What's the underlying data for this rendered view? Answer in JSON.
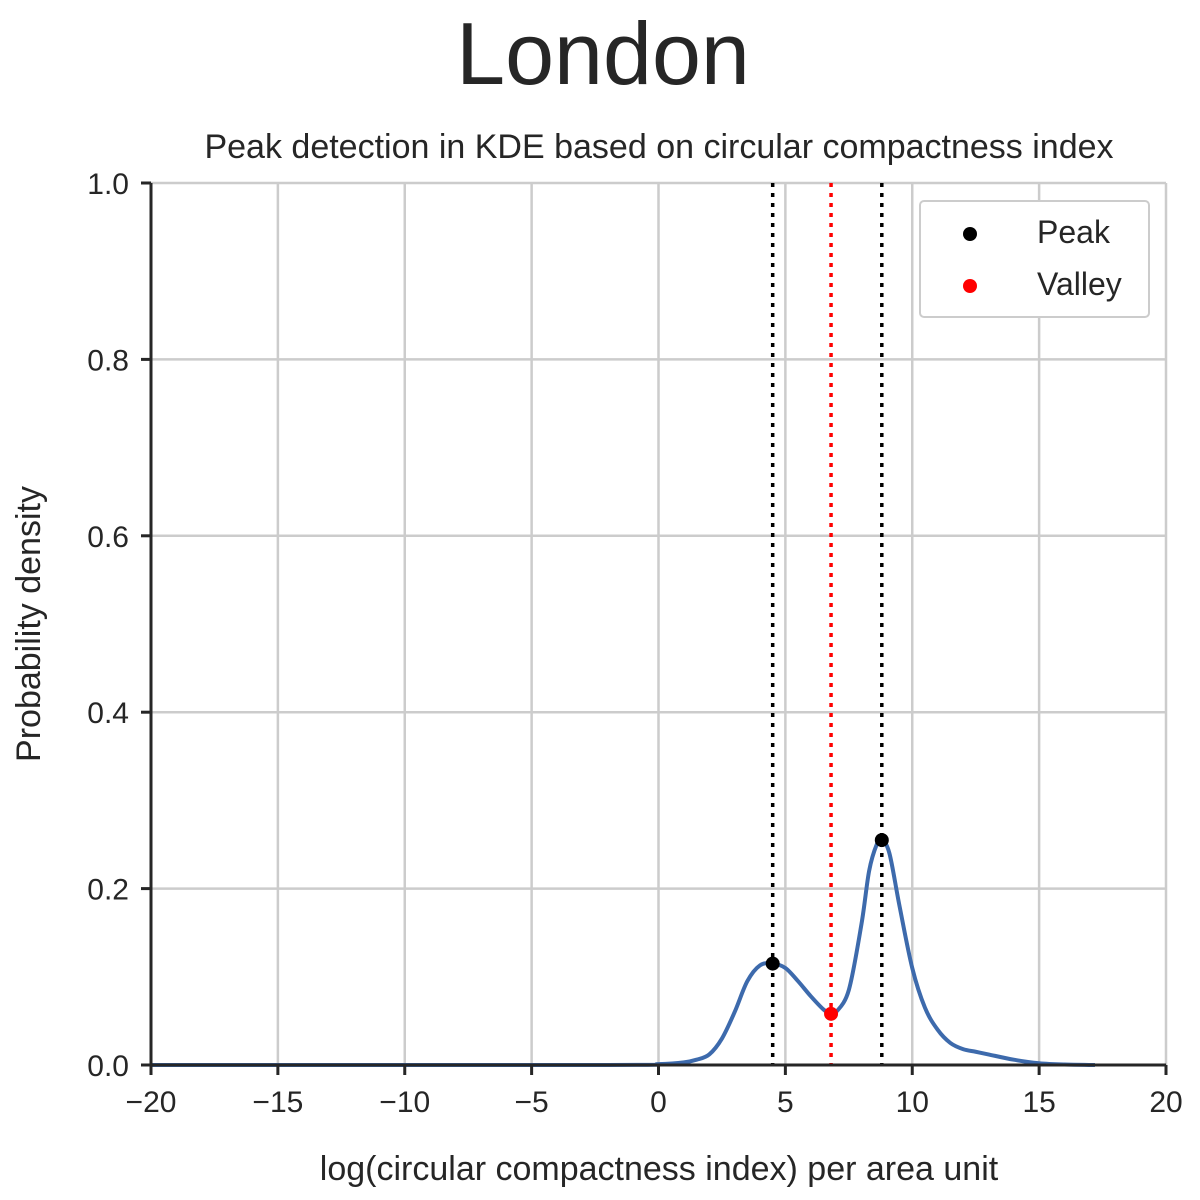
{
  "chart_data": {
    "type": "line",
    "title": "London",
    "subtitle": "Peak detection in KDE based on circular compactness index",
    "xlabel": "log(circular compactness index) per area unit",
    "ylabel": "Probability density",
    "xlim": [
      -20,
      20
    ],
    "ylim": [
      0,
      1.0
    ],
    "x_ticks": [
      -20,
      -15,
      -10,
      -5,
      0,
      5,
      10,
      15,
      20
    ],
    "x_tick_labels": [
      "−20",
      "−15",
      "−10",
      "−5",
      "0",
      "5",
      "10",
      "15",
      "20"
    ],
    "y_ticks": [
      0.0,
      0.2,
      0.4,
      0.6,
      0.8,
      1.0
    ],
    "y_tick_labels": [
      "0.0",
      "0.2",
      "0.4",
      "0.6",
      "0.8",
      "1.0"
    ],
    "grid": true,
    "legend_position": "top-right",
    "series": [
      {
        "color": "#3d6aac",
        "x": [
          -20,
          -2,
          0,
          1,
          1.5,
          2,
          2.5,
          3,
          3.5,
          4,
          4.5,
          5,
          5.5,
          6,
          6.5,
          6.8,
          7,
          7.5,
          8,
          8.3,
          8.6,
          8.8,
          9.1,
          9.5,
          10,
          10.5,
          11,
          11.5,
          12,
          12.5,
          13,
          14,
          15,
          16,
          17.2
        ],
        "y": [
          0,
          0,
          0.001,
          0.003,
          0.006,
          0.012,
          0.03,
          0.06,
          0.095,
          0.113,
          0.115,
          0.11,
          0.095,
          0.078,
          0.063,
          0.058,
          0.06,
          0.085,
          0.16,
          0.22,
          0.25,
          0.255,
          0.24,
          0.18,
          0.11,
          0.065,
          0.04,
          0.025,
          0.018,
          0.015,
          0.012,
          0.006,
          0.002,
          0.0005,
          0
        ]
      }
    ],
    "peaks": {
      "label": "Peak",
      "color": "#000000",
      "points": [
        {
          "x": 4.5,
          "y": 0.115
        },
        {
          "x": 8.8,
          "y": 0.255
        }
      ]
    },
    "valleys": {
      "label": "Valley",
      "color": "#ff0000",
      "points": [
        {
          "x": 6.8,
          "y": 0.058
        }
      ]
    },
    "colors": {
      "grid": "#cccccc",
      "axis": "#262626",
      "text": "#262626"
    }
  }
}
